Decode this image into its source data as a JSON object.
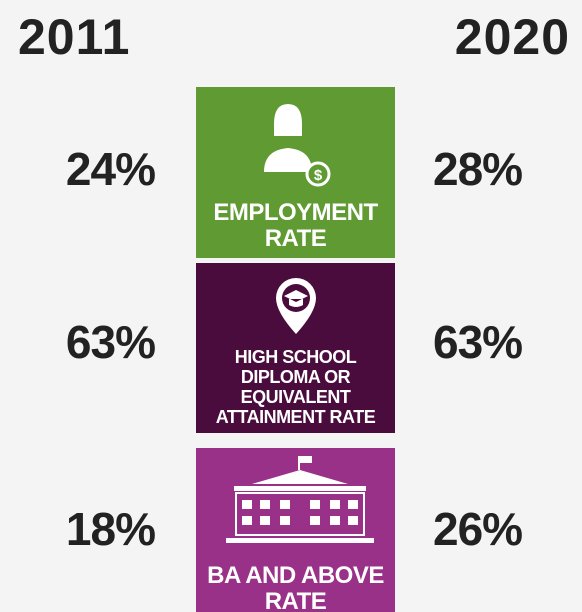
{
  "header": {
    "left_year": "2011",
    "right_year": "2020"
  },
  "rows": [
    {
      "label_lines": [
        "EMPLOYMENT",
        "RATE"
      ],
      "left_value": "24%",
      "right_value": "28%",
      "color": "#5f9a32"
    },
    {
      "label_lines": [
        "HIGH SCHOOL",
        "DIPLOMA OR",
        "EQUIVALENT",
        "ATTAINMENT RATE"
      ],
      "left_value": "63%",
      "right_value": "63%",
      "color": "#4a0b3d"
    },
    {
      "label_lines": [
        "BA AND ABOVE",
        "RATE"
      ],
      "left_value": "18%",
      "right_value": "26%",
      "color": "#9a3189"
    }
  ]
}
